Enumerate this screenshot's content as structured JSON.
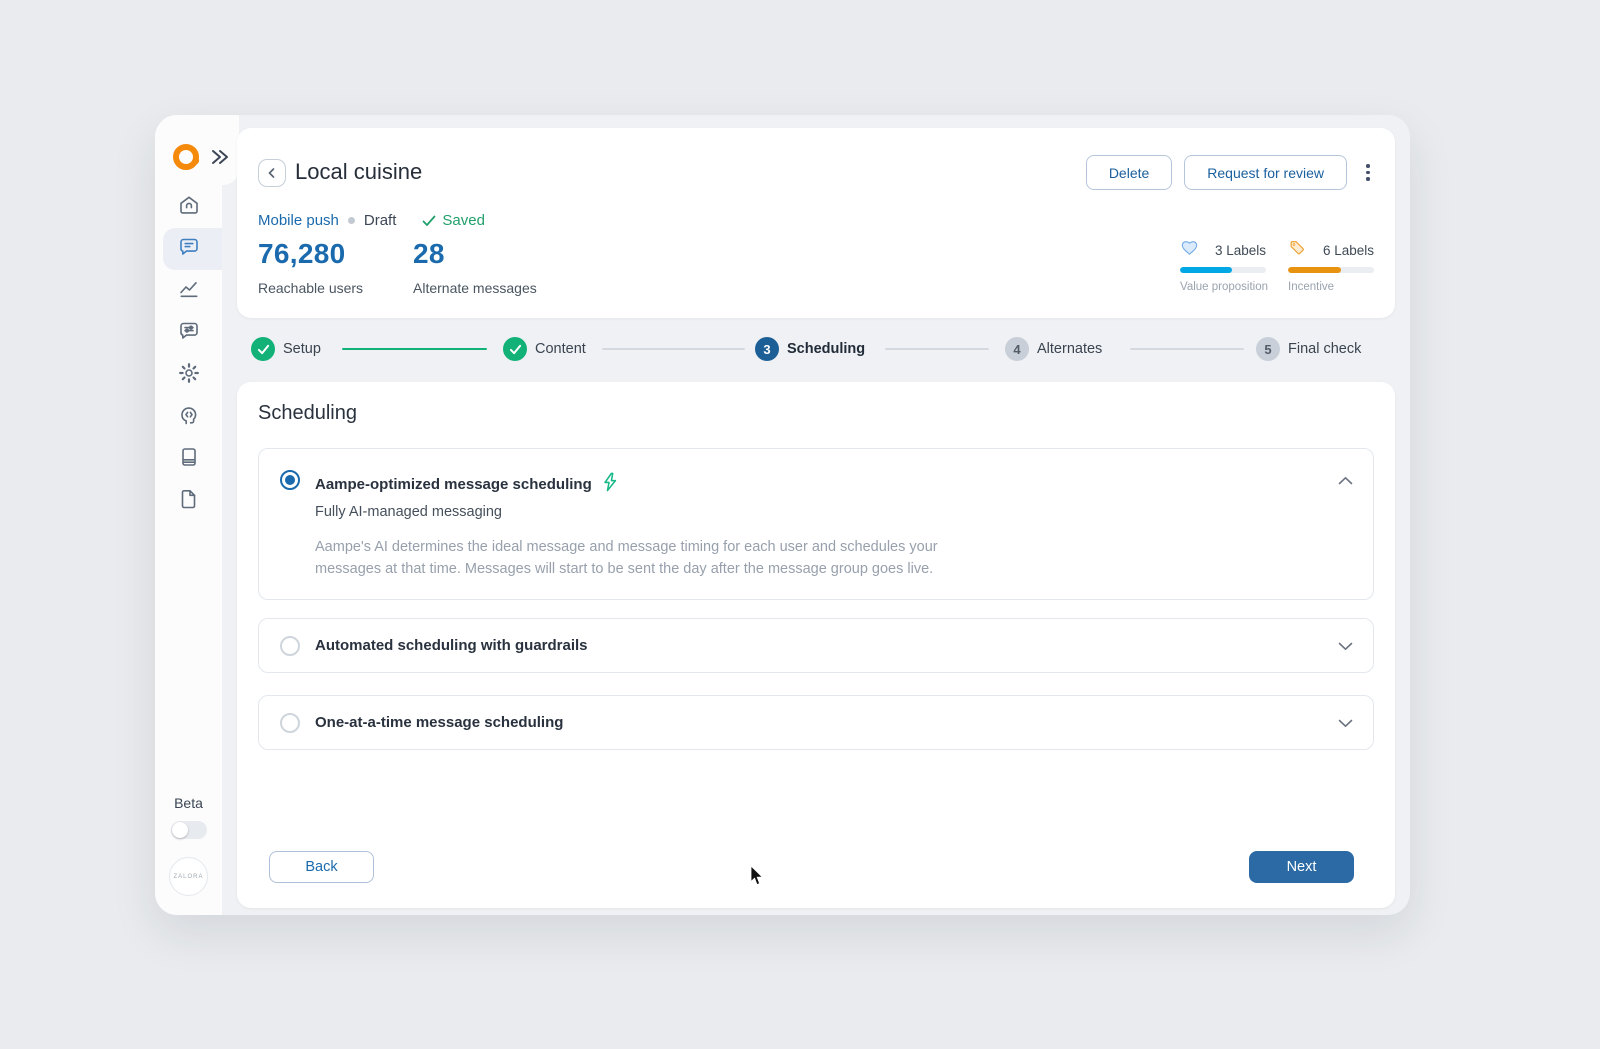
{
  "colors": {
    "accent_blue": "#1a6aad",
    "button_blue": "#2b6aa4",
    "step_green": "#12b178",
    "step_blue": "#1c5f96",
    "bar_blue": "#00a7e5",
    "bar_orange": "#e8930f",
    "logo_orange": "#f5890a"
  },
  "sidebar": {
    "beta_label": "Beta",
    "org_badge": "ZALORA",
    "items": [
      {
        "icon": "home-icon"
      },
      {
        "icon": "messages-icon",
        "active": true
      },
      {
        "icon": "analytics-icon"
      },
      {
        "icon": "message-settings-icon"
      },
      {
        "icon": "settings-gear-icon"
      },
      {
        "icon": "ai-head-icon"
      },
      {
        "icon": "library-icon"
      },
      {
        "icon": "document-icon"
      }
    ]
  },
  "header": {
    "title": "Local cuisine",
    "channel": "Mobile push",
    "status": "Draft",
    "saved_label": "Saved",
    "actions": {
      "delete_label": "Delete",
      "request_review_label": "Request for review"
    },
    "stats": [
      {
        "value": "76,280",
        "label": "Reachable users"
      },
      {
        "value": "28",
        "label": "Alternate messages"
      }
    ],
    "label_groups": [
      {
        "icon": "heart-icon",
        "count": "3 Labels",
        "category": "Value proposition",
        "bar_color": "#00a7e5",
        "fill_pct": 60
      },
      {
        "icon": "tag-icon",
        "count": "6 Labels",
        "category": "Incentive",
        "bar_color": "#e8930f",
        "fill_pct": 62
      }
    ]
  },
  "stepper": {
    "steps": [
      {
        "label": "Setup",
        "state": "done"
      },
      {
        "label": "Content",
        "state": "done"
      },
      {
        "label": "Scheduling",
        "state": "current",
        "number": "3"
      },
      {
        "label": "Alternates",
        "state": "upcoming",
        "number": "4"
      },
      {
        "label": "Final check",
        "state": "upcoming",
        "number": "5"
      }
    ]
  },
  "main": {
    "heading": "Scheduling",
    "options": [
      {
        "title": "Aampe-optimized message scheduling",
        "selected": true,
        "expanded": true,
        "subtitle": "Fully AI-managed messaging",
        "description": "Aampe's AI determines the ideal message and message timing for each user and schedules your messages at that time. Messages will start to be sent the day after the message group goes live."
      },
      {
        "title": "Automated scheduling with guardrails",
        "selected": false,
        "expanded": false
      },
      {
        "title": "One-at-a-time message scheduling",
        "selected": false,
        "expanded": false
      }
    ],
    "back_label": "Back",
    "next_label": "Next"
  }
}
